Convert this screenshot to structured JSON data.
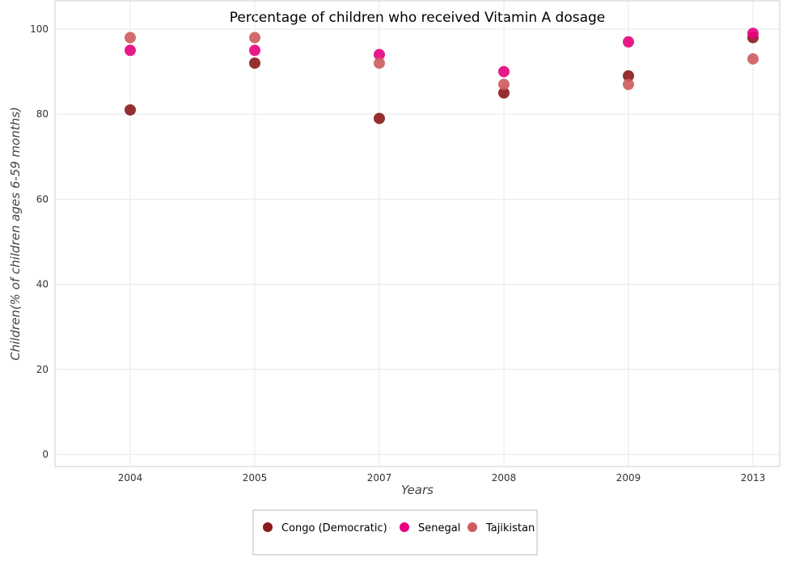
{
  "chart_data": {
    "type": "scatter",
    "title": "Percentage of children who received Vitamin A dosage",
    "xlabel": "Years",
    "ylabel": "Children(% of children ages 6-59 months)",
    "categories": [
      "2004",
      "2005",
      "2007",
      "2008",
      "2009",
      "2013"
    ],
    "ylim": [
      0,
      100
    ],
    "yticks": [
      0,
      20,
      40,
      60,
      80,
      100
    ],
    "grid": true,
    "legend_position": "bottom-center",
    "series": [
      {
        "name": "Congo (Democratic)",
        "color": "#8b1a1a",
        "values": [
          81,
          92,
          79,
          85,
          89,
          98
        ]
      },
      {
        "name": "Senegal",
        "color": "#e6007e",
        "values": [
          95,
          95,
          94,
          90,
          97,
          99
        ]
      },
      {
        "name": "Tajikistan",
        "color": "#cd5c5c",
        "values": [
          98,
          98,
          92,
          87,
          87,
          93
        ]
      }
    ]
  }
}
